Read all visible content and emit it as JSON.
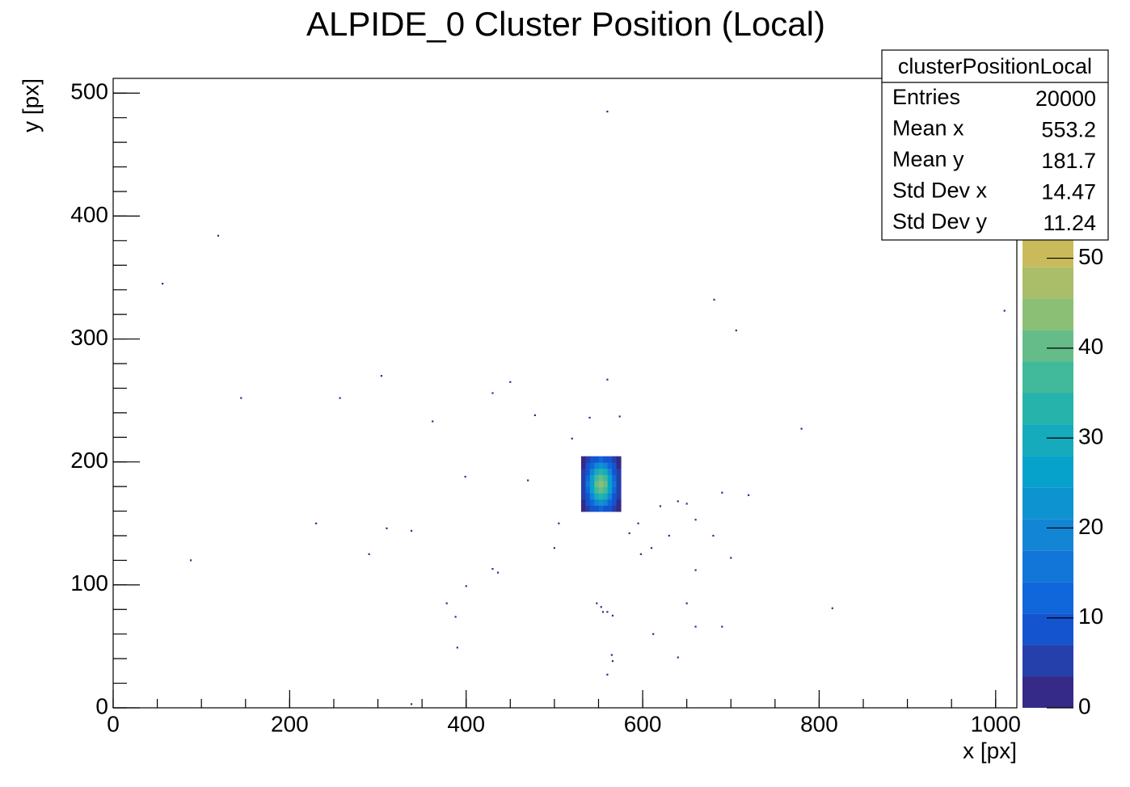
{
  "chart_data": {
    "type": "histogram2d",
    "title": "ALPIDE_0 Cluster Position (Local)",
    "xlabel": "x [px]",
    "ylabel": "y [px]",
    "xlim": [
      0,
      1024
    ],
    "ylim": [
      0,
      512
    ],
    "xticks": [
      0,
      200,
      400,
      600,
      800,
      1000
    ],
    "yticks": [
      0,
      100,
      200,
      300,
      400,
      500
    ],
    "zlim": [
      0,
      70
    ],
    "zticks": [
      0,
      10,
      20,
      30,
      40,
      50
    ],
    "palette": [
      "#352a87",
      "#0f5cdd",
      "#1481d6",
      "#06a4ca",
      "#2eb7a4",
      "#87bf77",
      "#d1bb59",
      "#fec832",
      "#f9fb0e"
    ],
    "stats": {
      "name": "clusterPositionLocal",
      "rows": [
        {
          "label": "Entries",
          "value": 20000
        },
        {
          "label": "Mean x",
          "value": 553.2
        },
        {
          "label": "Mean y",
          "value": 181.7
        },
        {
          "label": "Std Dev x",
          "value": 14.47
        },
        {
          "label": "Std Dev y",
          "value": 11.24
        }
      ]
    },
    "x": [
      533,
      538,
      543,
      548,
      553,
      558,
      563,
      568,
      573,
      533,
      538,
      543,
      548,
      553,
      558,
      563,
      568,
      573,
      533,
      538,
      543,
      548,
      553,
      558,
      563,
      568,
      573,
      533,
      538,
      543,
      548,
      553,
      558,
      563,
      568,
      573,
      533,
      538,
      543,
      548,
      553,
      558,
      563,
      568,
      573,
      533,
      538,
      543,
      548,
      553,
      558,
      563,
      568,
      573,
      533,
      538,
      543,
      548,
      553,
      558,
      563,
      568,
      573,
      533,
      538,
      543,
      548,
      553,
      558,
      563,
      568,
      573,
      533,
      538,
      543,
      548,
      553,
      558,
      563,
      568,
      573,
      560,
      119,
      56,
      681,
      706,
      1010,
      304,
      145,
      257,
      450,
      560,
      430,
      478,
      540,
      574,
      362,
      780,
      520,
      399,
      720,
      690,
      230,
      310,
      338,
      470,
      650,
      660,
      290,
      88,
      430,
      436,
      598,
      610,
      700,
      660,
      400,
      378,
      388,
      815,
      650,
      660,
      690,
      612,
      390,
      640,
      565,
      566,
      560,
      555,
      560,
      548,
      553,
      566,
      338,
      620,
      640,
      680,
      630,
      505,
      500,
      585,
      595
    ],
    "y": [
      162,
      162,
      162,
      162,
      162,
      162,
      162,
      162,
      162,
      167,
      167,
      167,
      167,
      167,
      167,
      167,
      167,
      167,
      172,
      172,
      172,
      172,
      172,
      172,
      172,
      172,
      172,
      177,
      177,
      177,
      177,
      177,
      177,
      177,
      177,
      177,
      182,
      182,
      182,
      182,
      182,
      182,
      182,
      182,
      182,
      187,
      187,
      187,
      187,
      187,
      187,
      187,
      187,
      187,
      192,
      192,
      192,
      192,
      192,
      192,
      192,
      192,
      192,
      197,
      197,
      197,
      197,
      197,
      197,
      197,
      197,
      197,
      202,
      202,
      202,
      202,
      202,
      202,
      202,
      202,
      202,
      485,
      384,
      345,
      332,
      307,
      323,
      270,
      252,
      252,
      265,
      267,
      256,
      238,
      236,
      237,
      233,
      227,
      219,
      188,
      173,
      175,
      150,
      146,
      144,
      185,
      166,
      153,
      125,
      120,
      113,
      110,
      125,
      130,
      122,
      112,
      99,
      85,
      74,
      81,
      85,
      66,
      66,
      60,
      49,
      41,
      43,
      38,
      27,
      78,
      78,
      85,
      82,
      75,
      3,
      164,
      168,
      140,
      140,
      150,
      130,
      142,
      150
    ],
    "values": [
      2,
      4,
      7,
      10,
      11,
      10,
      7,
      4,
      2,
      3,
      7,
      13,
      18,
      21,
      18,
      13,
      7,
      3,
      4,
      10,
      19,
      28,
      32,
      28,
      19,
      10,
      4,
      6,
      13,
      25,
      36,
      41,
      36,
      25,
      13,
      6,
      6,
      15,
      27,
      40,
      45,
      40,
      27,
      15,
      6,
      6,
      13,
      25,
      36,
      41,
      36,
      25,
      13,
      6,
      4,
      10,
      19,
      28,
      32,
      28,
      19,
      10,
      4,
      3,
      7,
      13,
      18,
      21,
      18,
      13,
      7,
      3,
      2,
      4,
      7,
      10,
      11,
      10,
      7,
      4,
      2,
      1,
      1,
      1,
      1,
      1,
      1,
      1,
      1,
      1,
      1,
      1,
      1,
      1,
      1,
      1,
      1,
      1,
      1,
      1,
      1,
      1,
      1,
      1,
      1,
      1,
      1,
      1,
      1,
      1,
      1,
      1,
      1,
      1,
      1,
      1,
      1,
      1,
      1,
      1,
      1,
      1,
      1,
      1,
      1,
      1,
      1,
      1,
      1,
      1,
      1,
      1,
      1,
      1,
      1,
      1,
      1,
      1,
      1,
      1,
      1,
      1,
      1
    ]
  }
}
